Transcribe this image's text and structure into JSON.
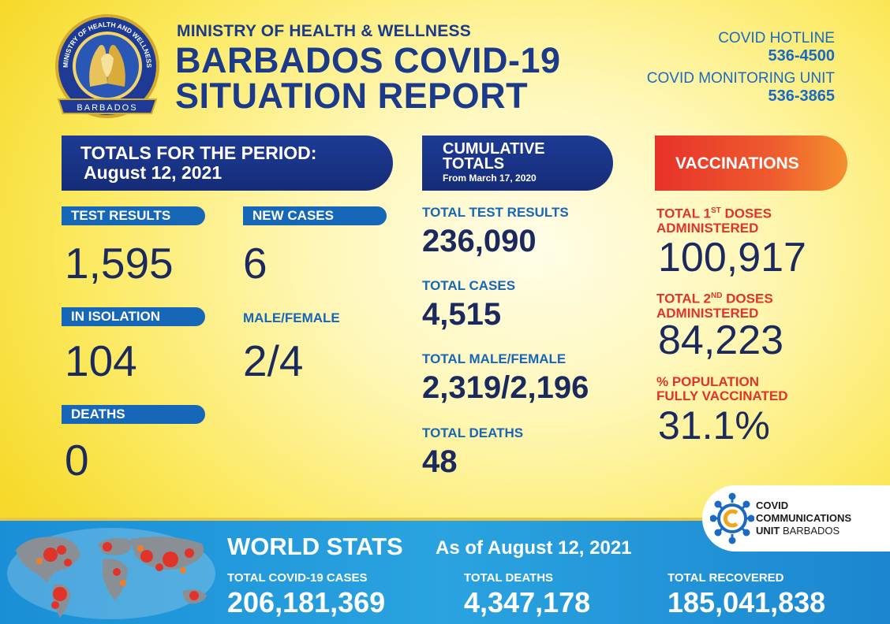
{
  "header": {
    "logo_text_top": "MINISTRY OF HEALTH AND WELLNESS",
    "logo_text_bottom": "BARBADOS",
    "ministry": "MINISTRY OF HEALTH & WELLNESS",
    "title_line1": "BARBADOS COVID-19",
    "title_line2": "SITUATION REPORT",
    "hotline_label": "COVID HOTLINE",
    "hotline_number": "536-4500",
    "monitoring_label": "COVID MONITORING UNIT",
    "monitoring_number": "536-3865"
  },
  "period": {
    "heading": "TOTALS FOR THE PERIOD:",
    "date": "August 12, 2021",
    "test_results_label": "TEST RESULTS",
    "test_results_value": "1,595",
    "new_cases_label": "NEW CASES",
    "new_cases_value": "6",
    "isolation_label": "IN ISOLATION",
    "isolation_value": "104",
    "male_female_label": "MALE/FEMALE",
    "male_female_value": "2/4",
    "deaths_label": "DEATHS",
    "deaths_value": "0"
  },
  "cumulative": {
    "heading_line1": "CUMULATIVE",
    "heading_line2": "TOTALS",
    "since": "From March 17, 2020",
    "test_results_label": "TOTAL TEST RESULTS",
    "test_results_value": "236,090",
    "cases_label": "TOTAL CASES",
    "cases_value": "4,515",
    "male_female_label": "TOTAL MALE/FEMALE",
    "male_female_value": "2,319/2,196",
    "deaths_label": "TOTAL DEATHS",
    "deaths_value": "48"
  },
  "vaccinations": {
    "heading": "VACCINATIONS",
    "first_label_a": "TOTAL 1",
    "first_sup": "ST",
    "first_label_b": " DOSES",
    "first_label_c": "ADMINISTERED",
    "first_value": "100,917",
    "second_label_a": "TOTAL 2",
    "second_sup": "ND",
    "second_label_b": " DOSES",
    "second_label_c": "ADMINISTERED",
    "second_value": "84,223",
    "pct_label_a": "% POPULATION",
    "pct_label_b": "FULLY VACCINATED",
    "pct_value": "31.1%"
  },
  "world": {
    "title": "WORLD STATS",
    "as_of": "As of August 12, 2021",
    "cases_label": "TOTAL COVID-19 CASES",
    "cases_value": "206,181,369",
    "deaths_label": "TOTAL DEATHS",
    "deaths_value": "4,347,178",
    "recovered_label": "TOTAL RECOVERED",
    "recovered_value": "185,041,838"
  },
  "ccu": {
    "line1": "COVID",
    "line2": "COMMUNICATIONS",
    "line3": "UNIT",
    "line3_suffix": " BARBADOS"
  },
  "colors": {
    "navy": "#1b2a5e",
    "banner_blue": "#1d3b95",
    "label_blue": "#1667b8",
    "vacc_red": "#e0342a",
    "world_blue": "#1a8fd6",
    "background_yellow": "#fbe85a"
  }
}
